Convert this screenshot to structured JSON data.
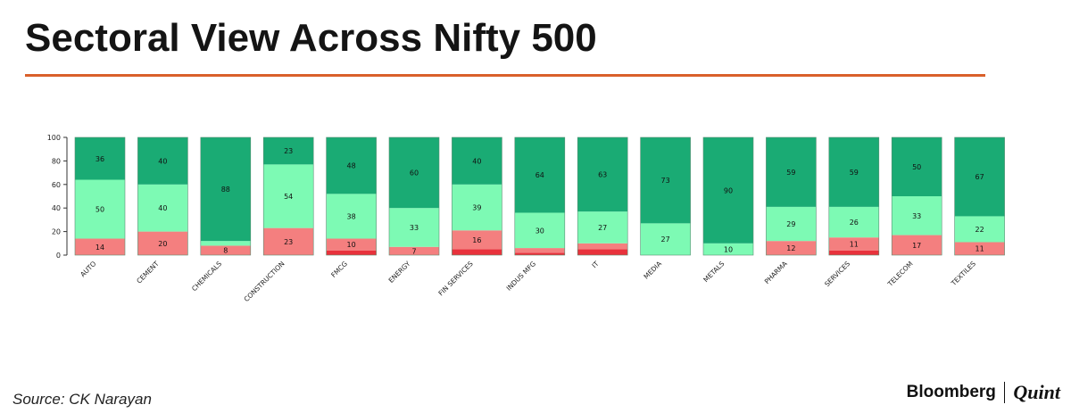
{
  "header": {
    "title": "Sectoral View Across Nifty 500"
  },
  "footer": {
    "source": "Source: CK Narayan",
    "brand_primary": "Bloomberg",
    "brand_secondary": "Quint"
  },
  "chart_data": {
    "type": "bar",
    "stacked": true,
    "title": "Sectoral View Across Nifty 500",
    "xlabel": "",
    "ylabel": "",
    "ylim": [
      0,
      100
    ],
    "yticks": [
      0,
      20,
      40,
      60,
      80,
      100
    ],
    "categories": [
      "AUTO",
      "CEMENT",
      "CHEMICALS",
      "CONSTRUCTION",
      "FMCG",
      "ENERGY",
      "FIN SERVICES",
      "INDUS MFG",
      "IT",
      "MEDIA",
      "METALS",
      "PHARMA",
      "SERVICES",
      "TELECOM",
      "TEXTILES"
    ],
    "series": [
      {
        "color": "#e8323c",
        "values": [
          0,
          0,
          0,
          0,
          4,
          0,
          5,
          2,
          5,
          0,
          0,
          0,
          4,
          0,
          0
        ],
        "labels": [
          "",
          "",
          "",
          "",
          "",
          "",
          "",
          "",
          "",
          "",
          "",
          "",
          "",
          "",
          ""
        ]
      },
      {
        "color": "#f47f7f",
        "values": [
          14,
          20,
          8,
          23,
          10,
          7,
          16,
          4,
          5,
          0,
          0,
          12,
          11,
          17,
          11
        ],
        "labels": [
          "14",
          "20",
          "8",
          "23",
          "10",
          "7",
          "16",
          "",
          "",
          "",
          "",
          "12",
          "11",
          "17",
          "11"
        ]
      },
      {
        "color": "#7dfab4",
        "values": [
          50,
          40,
          4,
          54,
          38,
          33,
          39,
          30,
          27,
          27,
          10,
          29,
          26,
          33,
          22
        ],
        "labels": [
          "50",
          "40",
          "",
          "54",
          "38",
          "33",
          "39",
          "30",
          "27",
          "27",
          "10",
          "29",
          "26",
          "33",
          "22"
        ]
      },
      {
        "color": "#1aab74",
        "values": [
          36,
          40,
          88,
          23,
          48,
          60,
          40,
          64,
          63,
          73,
          90,
          59,
          59,
          50,
          67
        ],
        "labels": [
          "36",
          "40",
          "88",
          "23",
          "48",
          "60",
          "40",
          "64",
          "63",
          "73",
          "90",
          "59",
          "59",
          "50",
          "67"
        ]
      }
    ],
    "grid": false,
    "legend": "none"
  }
}
